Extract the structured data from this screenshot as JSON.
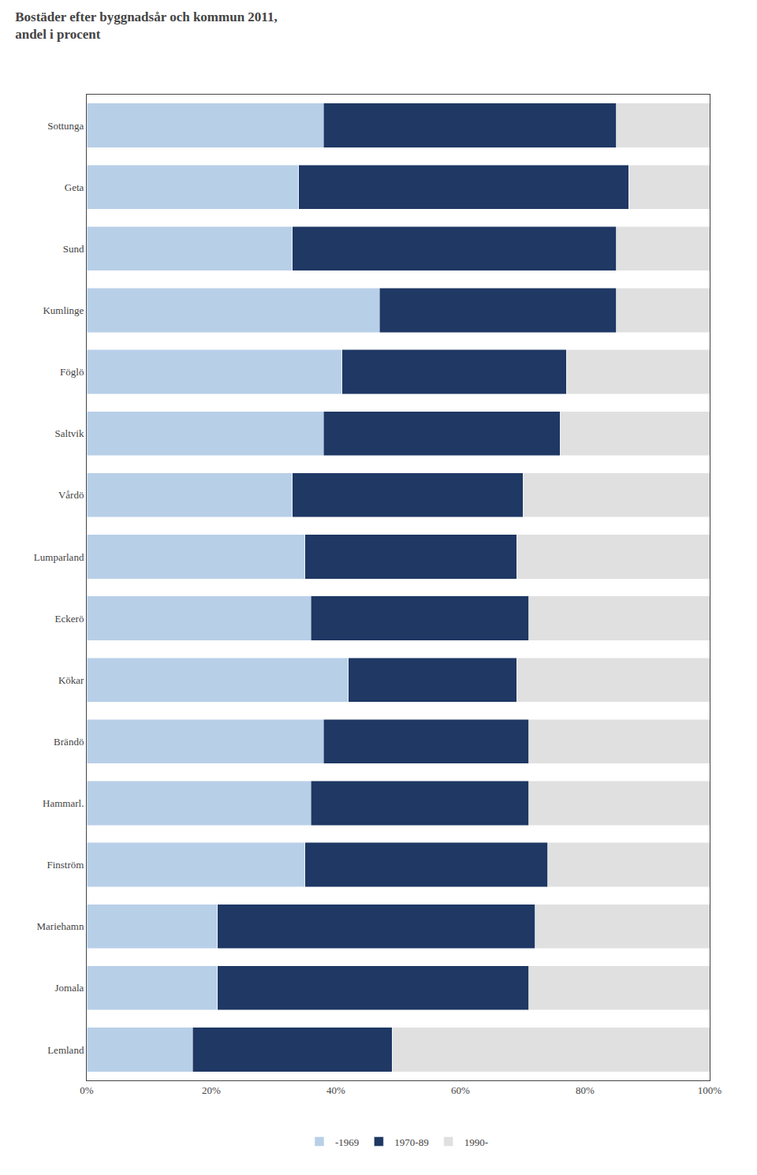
{
  "chart_data": {
    "type": "bar",
    "orientation": "horizontal",
    "stacked": true,
    "title": "Bostäder efter byggnadsår och kommun 2011,",
    "subtitle": "andel i procent",
    "categories": [
      "Sottunga",
      "Geta",
      "Sund",
      "Kumlinge",
      "Föglö",
      "Saltvik",
      "Vårdö",
      "Lumparland",
      "Eckerö",
      "Kökar",
      "Brändö",
      "Hammarl.",
      "Finström",
      "Mariehamn",
      "Jomala",
      "Lemland"
    ],
    "series": [
      {
        "name": "-1969",
        "color": "#b8cfe8",
        "values": [
          38,
          34,
          33,
          47,
          41,
          38,
          33,
          35,
          36,
          42,
          38,
          36,
          35,
          21,
          21,
          17
        ]
      },
      {
        "name": "1970-89",
        "color": "#1f3864",
        "values": [
          47,
          53,
          52,
          38,
          36,
          38,
          37,
          34,
          35,
          27,
          33,
          35,
          39,
          51,
          50,
          32
        ]
      },
      {
        "name": "1990-",
        "color": "#e0e0e0",
        "values": [
          15,
          13,
          15,
          15,
          23,
          24,
          30,
          31,
          29,
          31,
          29,
          29,
          26,
          28,
          29,
          51
        ]
      }
    ],
    "xlim": [
      0,
      100
    ],
    "xticks": [
      {
        "value": 0,
        "label": "0%"
      },
      {
        "value": 20,
        "label": "20%"
      },
      {
        "value": 40,
        "label": "40%"
      },
      {
        "value": 60,
        "label": "60%"
      },
      {
        "value": 80,
        "label": "80%"
      },
      {
        "value": 100,
        "label": "100%"
      }
    ],
    "grid": false,
    "legend": "bottom"
  }
}
